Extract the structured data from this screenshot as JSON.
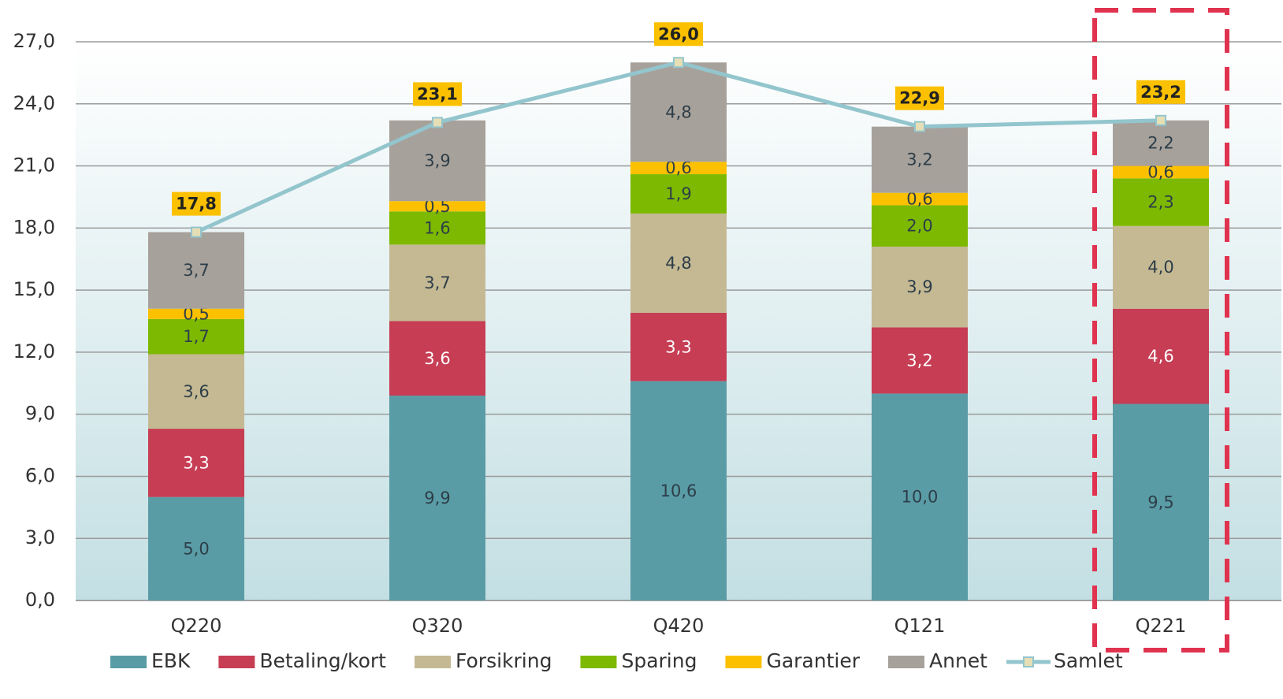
{
  "chart_data": {
    "type": "bar",
    "stacked": true,
    "categories": [
      "Q220",
      "Q320",
      "Q420",
      "Q121",
      "Q221"
    ],
    "series": [
      {
        "name": "EBK",
        "color": "#5a9ca6",
        "values": [
          5.0,
          9.9,
          10.6,
          10.0,
          9.5
        ],
        "value_labels": [
          "5,0",
          "9,9",
          "10,6",
          "10,0",
          "9,5"
        ]
      },
      {
        "name": "Betaling/kort",
        "color": "#c63d54",
        "values": [
          3.3,
          3.6,
          3.3,
          3.2,
          4.6
        ],
        "value_labels": [
          "3,3",
          "3,6",
          "3,3",
          "3,2",
          "4,6"
        ]
      },
      {
        "name": "Forsikring",
        "color": "#c5b994",
        "values": [
          3.6,
          3.7,
          4.8,
          3.9,
          4.0
        ],
        "value_labels": [
          "3,6",
          "3,7",
          "4,8",
          "3,9",
          "4,0"
        ]
      },
      {
        "name": "Sparing",
        "color": "#7db900",
        "values": [
          1.7,
          1.6,
          1.9,
          2.0,
          2.3
        ],
        "value_labels": [
          "1,7",
          "1,6",
          "1,9",
          "2,0",
          "2,3"
        ]
      },
      {
        "name": "Garantier",
        "color": "#fbc100",
        "values": [
          0.5,
          0.5,
          0.6,
          0.6,
          0.6
        ],
        "value_labels": [
          "0,5",
          "0,5",
          "0,6",
          "0,6",
          "0,6"
        ]
      },
      {
        "name": "Annet",
        "color": "#a7a19b",
        "values": [
          3.7,
          3.9,
          4.8,
          3.2,
          2.2
        ],
        "value_labels": [
          "3,7",
          "3,9",
          "4,8",
          "3,2",
          "2,2"
        ]
      },
      {
        "name": "Samlet",
        "type": "line",
        "color": "#93c5cd",
        "values": [
          17.8,
          23.1,
          26.0,
          22.9,
          23.2
        ],
        "value_labels": [
          "17,8",
          "23,1",
          "26,0",
          "22,9",
          "23,2"
        ]
      }
    ],
    "ylim": [
      0,
      27
    ],
    "yticks": [
      {
        "value": 0,
        "label": "0,0"
      },
      {
        "value": 3,
        "label": "3,0"
      },
      {
        "value": 6,
        "label": "6,0"
      },
      {
        "value": 9,
        "label": "9,0"
      },
      {
        "value": 12,
        "label": "12,0"
      },
      {
        "value": 15,
        "label": "15,0"
      },
      {
        "value": 18,
        "label": "18,0"
      },
      {
        "value": 21,
        "label": "21,0"
      },
      {
        "value": 24,
        "label": "24,0"
      },
      {
        "value": 27,
        "label": "27,0"
      }
    ],
    "grid": true,
    "legend": "bottom",
    "highlight": "Q221"
  }
}
